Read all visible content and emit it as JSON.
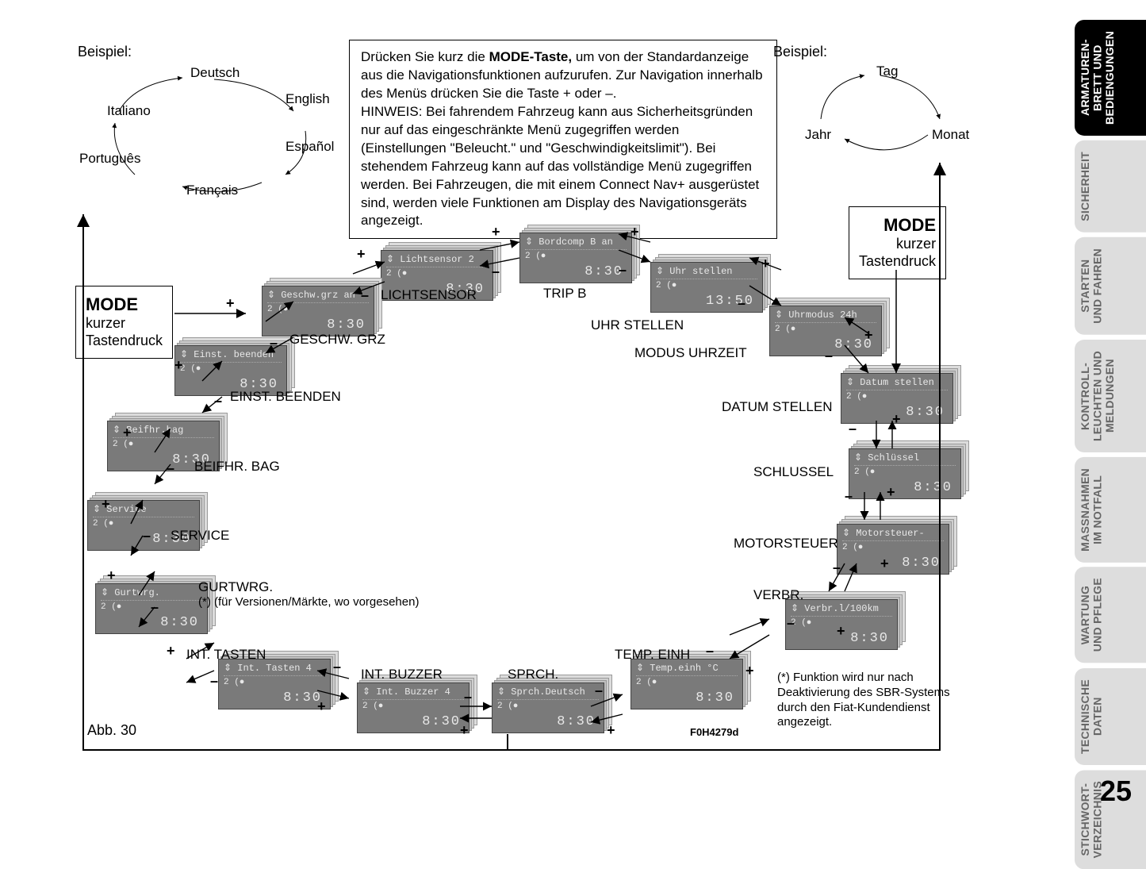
{
  "page_number": "25",
  "figure_ref": "Abb. 30",
  "figure_code": "F0H4279d",
  "beispiel_left": "Beispiel:",
  "beispiel_right": "Beispiel:",
  "languages": {
    "de": "Deutsch",
    "it": "Italiano",
    "en": "English",
    "pt": "Português",
    "es": "Español",
    "fr": "Français"
  },
  "date_cycle": {
    "tag": "Tag",
    "monat": "Monat",
    "jahr": "Jahr"
  },
  "info_box_html": "Drücken Sie kurz die <b>MODE-Taste,</b> um von der Standardanzeige aus die Navigationsfunktionen aufzurufen. Zur Navigation innerhalb des Menüs drücken Sie die Taste + oder –.<br>HINWEIS: Bei fahrendem Fahrzeug kann aus Sicherheitsgründen nur auf das eingeschränkte Menü zugegriffen werden (Einstellungen \"Beleucht.\" und \"Geschwindigkeitslimit\"). Bei stehendem Fahrzeug kann auf das vollständige Menü zugegriffen werden. Bei Fahrzeugen, die mit einem Connect Nav+ ausgerüstet sind, werden viele Funktionen am Display des Navigationsgeräts angezeigt.",
  "mode_box": {
    "title": "MODE",
    "line1": "kurzer",
    "line2": "Tastendruck"
  },
  "footnote": "(*) Funktion wird nur nach Deaktivierung des SBR-Systems durch den Fiat-Kundendienst angezeigt.",
  "nodes": {
    "lichtsensor": {
      "title": "⇕ Lichtsensor 2",
      "time": "8:30",
      "label": "LICHTSENSOR"
    },
    "tripb": {
      "title": "⇕ Bordcomp B an",
      "time": "8:30",
      "label": "TRIP B"
    },
    "uhrstellen": {
      "title": "⇕ Uhr stellen",
      "time": "13:50",
      "label": "UHR STELLEN"
    },
    "geschw": {
      "title": "⇕ Geschw.grz an",
      "time": "8:30",
      "label": "GESCHW. GRZ"
    },
    "uhrmodus": {
      "title": "⇕ Uhrmodus 24h",
      "time": "8:30",
      "label": "MODUS UHRZEIT"
    },
    "einstbeenden": {
      "title": "⇕ Einst. beenden",
      "time": "8:30",
      "label": "EINST. BEENDEN"
    },
    "datumstellen": {
      "title": "⇕ Datum stellen",
      "time": "8:30",
      "label": "DATUM STELLEN"
    },
    "beifhrbag": {
      "title": "⇕ Beifhr.bag",
      "time": "8:30",
      "label": "BEIFHR. BAG"
    },
    "schlussel": {
      "title": "⇕ Schlüssel",
      "time": "8:30",
      "label": "SCHLUSSEL"
    },
    "service": {
      "title": "⇕ Service",
      "time": "8:30",
      "label": "SERVICE"
    },
    "motorsteuer": {
      "title": "⇕ Motorsteuer-",
      "time": "8:30",
      "label": "MOTORSTEUER"
    },
    "gurtwrg": {
      "title": "⇕ Gurtwrg.",
      "time": "8:30",
      "label": "GURTWRG.",
      "note": "(*) (für Versionen/Märkte, wo vorgesehen)"
    },
    "verbr": {
      "title": "⇕ Verbr.l/100km",
      "time": "8:30",
      "label": "VERBR."
    },
    "inttasten": {
      "title": "⇕ Int. Tasten 4",
      "time": "8:30",
      "label": "INT. TASTEN"
    },
    "tempeinhc": {
      "title": "⇕ Temp.einh °C",
      "time": "8:30",
      "label": "TEMP. EINH"
    },
    "intbuzzer": {
      "title": "⇕ Int. Buzzer 4",
      "time": "8:30",
      "label": "INT. BUZZER"
    },
    "sprch": {
      "title": "⇕ Sprch.Deutsch",
      "time": "8:30",
      "label": "SPRCH."
    }
  },
  "tabs": [
    {
      "text": "ARMATUREN-\nBRETT UND\nBEDIENGUNGEN",
      "active": true
    },
    {
      "text": "SICHERHEIT",
      "active": false
    },
    {
      "text": "STARTEN\nUND FAHREN",
      "active": false
    },
    {
      "text": "KONTROLL-\nLEUCHTEN UND\nMELDUNGEN",
      "active": false
    },
    {
      "text": "MASSNAHMEN\nIM NOTFALL",
      "active": false
    },
    {
      "text": "WARTUNG\nUND PFLEGE",
      "active": false
    },
    {
      "text": "TECHNISCHE\nDATEN",
      "active": false
    },
    {
      "text": "STICHWORT-\nVERZEICHNIS",
      "active": false
    }
  ],
  "sub2": "2 (●"
}
